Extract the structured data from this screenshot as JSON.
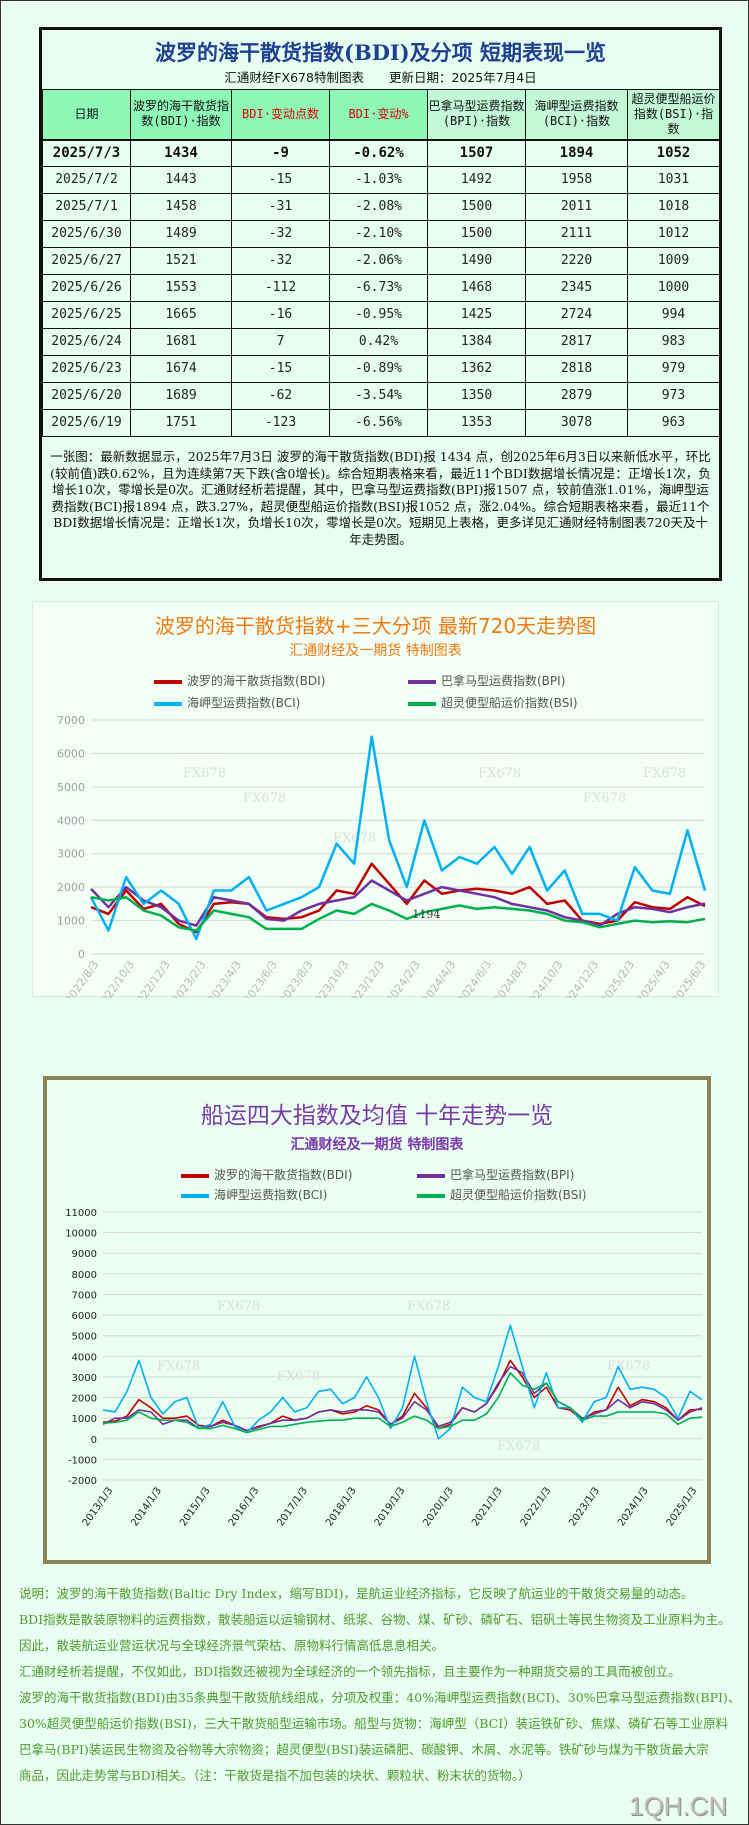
{
  "table": {
    "title": "波罗的海干散货指数(BDI)及分项 短期表现一览",
    "subtitle": "汇通财经FX678特制图表　　更新日期：2025年7月4日",
    "headers": [
      "日期",
      "波罗的海干散货指数(BDI)·指数",
      "BDI·变动点数",
      "BDI·变动%",
      "巴拿马型运费指数(BPI)·指数",
      "海岬型运费指数(BCI)·指数",
      "超灵便型船运价指数(BSI)·指数"
    ],
    "rows": [
      [
        "2025/7/3",
        "1434",
        "-9",
        "-0.62%",
        "1507",
        "1894",
        "1052"
      ],
      [
        "2025/7/2",
        "1443",
        "-15",
        "-1.03%",
        "1492",
        "1958",
        "1031"
      ],
      [
        "2025/7/1",
        "1458",
        "-31",
        "-2.08%",
        "1500",
        "2011",
        "1018"
      ],
      [
        "2025/6/30",
        "1489",
        "-32",
        "-2.10%",
        "1500",
        "2111",
        "1012"
      ],
      [
        "2025/6/27",
        "1521",
        "-32",
        "-2.06%",
        "1490",
        "2220",
        "1009"
      ],
      [
        "2025/6/26",
        "1553",
        "-112",
        "-6.73%",
        "1468",
        "2345",
        "1000"
      ],
      [
        "2025/6/25",
        "1665",
        "-16",
        "-0.95%",
        "1425",
        "2724",
        "994"
      ],
      [
        "2025/6/24",
        "1681",
        "7",
        "0.42%",
        "1384",
        "2817",
        "983"
      ],
      [
        "2025/6/23",
        "1674",
        "-15",
        "-0.89%",
        "1362",
        "2818",
        "979"
      ],
      [
        "2025/6/20",
        "1689",
        "-62",
        "-3.54%",
        "1350",
        "2879",
        "973"
      ],
      [
        "2025/6/19",
        "1751",
        "-123",
        "-6.56%",
        "1353",
        "3078",
        "963"
      ]
    ],
    "note": "一张图：最新数据显示，2025年7月3日 波罗的海干散货指数(BDI)报 1434 点，创2025年6月3日以来新低水平，环比(较前值)跌0.62%，且为连续第7天下跌(含0增长)。综合短期表格来看，最近11个BDI数据增长情况是：正增长1次，负增长10次，零增长是0次。汇通财经析若提醒，其中，巴拿马型运费指数(BPI)报1507 点，较前值涨1.01%，海岬型运费指数(BCI)报1894 点，跌3.27%，超灵便型船运价指数(BSI)报1052 点，涨2.04%。综合短期表格来看，最近11个BDI数据增长情况是：正增长1次，负增长10次，零增长是0次。短期见上表格，更多详见汇通财经特制图表720天及十年走势图。"
  },
  "colors": {
    "BDI": "#c00000",
    "BPI": "#7030a0",
    "BCI": "#00b0f0",
    "BSI": "#00b050"
  },
  "watermark": "FX678",
  "chart_data": [
    {
      "type": "line",
      "title": "波罗的海干散货指数+三大分项  最新720天走势图",
      "subtitle": "汇通财经及一期货  特制图表",
      "legend": [
        "波罗的海干散货指数(BDI)",
        "巴拿马型运费指数(BPI)",
        "海岬型运费指数(BCI)",
        "超灵便型船运价指数(BSI)"
      ],
      "legend_position": "top",
      "ylim": [
        0,
        7000
      ],
      "yticks": [
        "0",
        "1000",
        "2000",
        "3000",
        "4000",
        "5000",
        "6000",
        "7000"
      ],
      "xticks": [
        "2022/8/3",
        "2022/10/3",
        "2022/12/3",
        "2023/2/3",
        "2023/4/3",
        "2023/6/3",
        "2023/8/3",
        "2023/10/3",
        "2023/12/3",
        "2024/2/3",
        "2024/4/3",
        "2024/6/3",
        "2024/8/3",
        "2024/10/3",
        "2024/12/3",
        "2025/2/3",
        "2025/4/3",
        "2025/6/3"
      ],
      "grid": true,
      "annotation": {
        "label": "1194",
        "x": "2024/2/3",
        "y": 1194
      },
      "x": [
        "2022/8",
        "2022/9",
        "2022/10",
        "2022/11",
        "2022/12",
        "2023/1",
        "2023/2",
        "2023/3",
        "2023/4",
        "2023/5",
        "2023/6",
        "2023/7",
        "2023/8",
        "2023/9",
        "2023/10",
        "2023/11",
        "2023/12",
        "2024/1",
        "2024/2",
        "2024/3",
        "2024/4",
        "2024/5",
        "2024/6",
        "2024/7",
        "2024/8",
        "2024/9",
        "2024/10",
        "2024/11",
        "2024/12",
        "2025/1",
        "2025/2",
        "2025/3",
        "2025/4",
        "2025/5",
        "2025/6",
        "2025/7"
      ],
      "series": [
        {
          "name": "波罗的海干散货指数(BDI)",
          "key": "BDI",
          "values": [
            1400,
            1200,
            1900,
            1350,
            1500,
            900,
            650,
            1500,
            1550,
            1500,
            1100,
            1050,
            1100,
            1300,
            1900,
            1800,
            2700,
            2100,
            1500,
            2200,
            1800,
            1900,
            1950,
            1900,
            1800,
            2000,
            1500,
            1600,
            1000,
            900,
            1000,
            1550,
            1400,
            1350,
            1700,
            1434
          ]
        },
        {
          "name": "巴拿马型运费指数(BPI)",
          "key": "BPI",
          "values": [
            1950,
            1400,
            2000,
            1600,
            1400,
            1000,
            850,
            1700,
            1600,
            1500,
            1050,
            1000,
            1300,
            1500,
            1600,
            1700,
            2200,
            1900,
            1600,
            1800,
            2000,
            1900,
            1800,
            1700,
            1500,
            1400,
            1300,
            1100,
            1000,
            850,
            1200,
            1400,
            1350,
            1250,
            1400,
            1507
          ]
        },
        {
          "name": "海岬型运费指数(BCI)",
          "key": "BCI",
          "values": [
            1700,
            700,
            2300,
            1500,
            1900,
            1500,
            450,
            1900,
            1900,
            2300,
            1300,
            1500,
            1700,
            2000,
            3300,
            2700,
            6500,
            3400,
            2000,
            4000,
            2500,
            2900,
            2700,
            3200,
            2400,
            3200,
            1900,
            2500,
            1200,
            1200,
            1000,
            2600,
            1900,
            1800,
            3700,
            1894
          ]
        },
        {
          "name": "超灵便型船运价指数(BSI)",
          "key": "BSI",
          "values": [
            1700,
            1600,
            1700,
            1300,
            1150,
            800,
            700,
            1300,
            1200,
            1100,
            750,
            750,
            750,
            1050,
            1300,
            1200,
            1500,
            1300,
            1050,
            1250,
            1350,
            1450,
            1350,
            1400,
            1350,
            1300,
            1200,
            1000,
            950,
            800,
            900,
            1000,
            950,
            980,
            950,
            1052
          ]
        }
      ]
    },
    {
      "type": "line",
      "title": "船运四大指数及均值 十年走势一览",
      "subtitle": "汇通财经及一期货 特制图表",
      "legend": [
        "波罗的海干散货指数(BDI)",
        "巴拿马型运费指数(BPI)",
        "海岬型运费指数(BCI)",
        "超灵便型船运价指数(BSI)"
      ],
      "legend_position": "top",
      "ylim": [
        -2000,
        11000
      ],
      "yticks": [
        "-2000",
        "-1000",
        "0",
        "1000",
        "2000",
        "3000",
        "4000",
        "5000",
        "6000",
        "7000",
        "8000",
        "9000",
        "10000",
        "11000"
      ],
      "xticks": [
        "2013/1/3",
        "2014/1/3",
        "2015/1/3",
        "2016/1/3",
        "2017/1/3",
        "2018/1/3",
        "2019/1/3",
        "2020/1/3",
        "2021/1/3",
        "2022/1/3",
        "2023/1/3",
        "2024/1/3",
        "2025/1/3"
      ],
      "grid": true,
      "x_start": "2013/1",
      "x_step": "quarter",
      "series": [
        {
          "name": "波罗的海干散货指数(BDI)",
          "key": "BDI",
          "values": [
            800,
            850,
            1100,
            1900,
            1500,
            1000,
            1000,
            1100,
            650,
            600,
            900,
            650,
            400,
            600,
            750,
            1100,
            900,
            1000,
            1300,
            1400,
            1200,
            1300,
            1600,
            1400,
            700,
            1100,
            2200,
            1500,
            500,
            700,
            1500,
            1300,
            1700,
            2600,
            3800,
            3000,
            2000,
            2500,
            1500,
            1400,
            900,
            1300,
            1400,
            2500,
            1600,
            1900,
            1800,
            1500,
            900,
            1400,
            1434
          ]
        },
        {
          "name": "巴拿马型运费指数(BPI)",
          "key": "BPI",
          "values": [
            700,
            1000,
            1000,
            1400,
            1300,
            700,
            900,
            900,
            500,
            600,
            800,
            650,
            400,
            550,
            750,
            900,
            900,
            1000,
            1300,
            1400,
            1300,
            1400,
            1400,
            1300,
            700,
            1000,
            1800,
            1400,
            600,
            800,
            1500,
            1300,
            1700,
            2700,
            3500,
            3200,
            2200,
            2700,
            1800,
            1500,
            1000,
            1200,
            1400,
            1900,
            1500,
            1800,
            1700,
            1400,
            900,
            1300,
            1507
          ]
        },
        {
          "name": "海岬型运费指数(BCI)",
          "key": "BCI",
          "values": [
            1400,
            1300,
            2300,
            3800,
            2000,
            1200,
            1800,
            2000,
            500,
            700,
            1800,
            600,
            300,
            900,
            1300,
            2000,
            1300,
            1500,
            2300,
            2400,
            1700,
            2000,
            3000,
            2000,
            500,
            1500,
            4000,
            1800,
            0,
            500,
            2500,
            2000,
            1800,
            3500,
            5500,
            3500,
            1500,
            3200,
            1500,
            1500,
            800,
            1800,
            2000,
            3500,
            2400,
            2500,
            2400,
            2000,
            1000,
            2300,
            1894
          ]
        },
        {
          "name": "超灵便型船运价指数(BSI)",
          "key": "BSI",
          "values": [
            750,
            800,
            900,
            1300,
            1000,
            900,
            900,
            800,
            500,
            500,
            650,
            500,
            300,
            450,
            600,
            600,
            700,
            800,
            850,
            900,
            900,
            1000,
            1000,
            1000,
            600,
            800,
            1100,
            900,
            500,
            600,
            900,
            900,
            1200,
            2000,
            3200,
            2600,
            2400,
            2700,
            1800,
            1500,
            900,
            1100,
            1100,
            1300,
            1300,
            1300,
            1300,
            1200,
            700,
            1000,
            1052
          ]
        }
      ]
    }
  ],
  "notes": [
    "说明：波罗的海干散货指数(Baltic Dry Index，缩写BDI)，是航运业经济指标，它反映了航运业的干散货交易量的动态。",
    "BDI指数是散装原物料的运费指数，散装船运以运输钢材、纸浆、谷物、煤、矿砂、磷矿石、铝矾土等民生物资及工业原料为主。",
    "因此，散装航运业营运状况与全球经济景气荣枯、原物料行情高低息息相关。",
    "汇通财经析若提醒，不仅如此，BDI指数还被视为全球经济的一个领先指标，且主要作为一种期货交易的工具而被创立。",
    "波罗的海干散货指数(BDI)由35条典型干散货航线组成，分项及权重：40%海岬型运费指数(BCI)、30%巴拿马型运费指数(BPI)、",
    "30%超灵便型船运价指数(BSI)，三大干散货船型运输市场。船型与货物：海岬型（BCI）装运铁矿砂、焦煤、磷矿石等工业原料",
    "巴拿马(BPI)装运民生物资及谷物等大宗物资；超灵便型(BSI)装运磷肥、碳酸钾、木屑、水泥等。铁矿砂与煤为干散货最大宗",
    "商品，因此走势常与BDI相关。（注：干散货是指不加包装的块状、颗粒状、粉末状的货物。）"
  ],
  "logo": "1QH.CN"
}
